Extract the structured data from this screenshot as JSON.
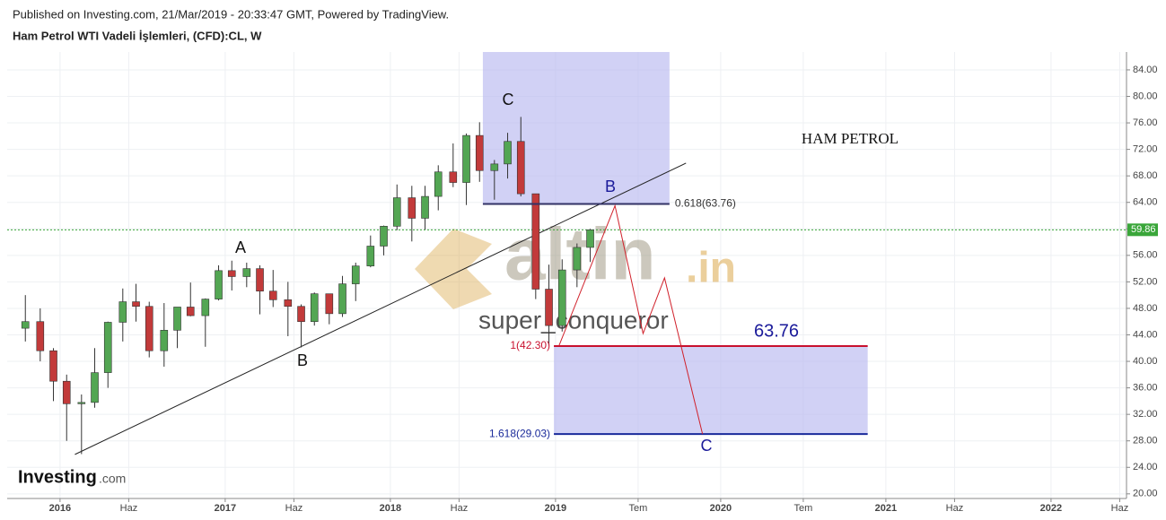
{
  "header": {
    "published": "Published on Investing.com, 21/Mar/2019 - 20:33:47 GMT, Powered by TradingView.",
    "instrument": "Ham Petrol WTI Vadeli İşlemleri, (CFD):CL, W"
  },
  "logo": {
    "name": "Investing",
    "suffix": ".com"
  },
  "watermark": {
    "name": "altin",
    "suffix": ".in",
    "author": "super_conqueror"
  },
  "chart_data": {
    "type": "candlestick",
    "x": [
      2015.79,
      2015.88,
      2015.96,
      2016.04,
      2016.13,
      2016.21,
      2016.29,
      2016.38,
      2016.46,
      2016.54,
      2016.63,
      2016.71,
      2016.79,
      2016.88,
      2016.96,
      2017.04,
      2017.13,
      2017.21,
      2017.29,
      2017.38,
      2017.46,
      2017.54,
      2017.63,
      2017.71,
      2017.79,
      2017.88,
      2017.96,
      2018.04,
      2018.13,
      2018.21,
      2018.29,
      2018.38,
      2018.46,
      2018.54,
      2018.63,
      2018.71,
      2018.79,
      2018.88,
      2018.96,
      2019.04,
      2019.13,
      2019.21
    ],
    "open": [
      45,
      46,
      41.6,
      37,
      33.6,
      33.8,
      38.3,
      45.9,
      49,
      48.3,
      41.6,
      44.7,
      48.2,
      46.9,
      49.4,
      53.7,
      52.8,
      54,
      50.6,
      49.3,
      48.3,
      46,
      50.2,
      47.2,
      51.7,
      54.4,
      57.4,
      60.4,
      64.7,
      61.6,
      64.9,
      68.6,
      67,
      74.1,
      68.8,
      69.8,
      73.2,
      65.3,
      50.9,
      45.4,
      53.8,
      57.2
    ],
    "high": [
      50,
      48,
      42,
      38,
      35,
      42,
      46,
      51,
      51.7,
      49,
      48.8,
      48,
      51.9,
      49.5,
      54.5,
      55.2,
      54.9,
      54.5,
      53.8,
      52,
      48.6,
      50.4,
      50.2,
      52.9,
      54.9,
      59,
      60.5,
      66.7,
      66.5,
      66.5,
      69.6,
      72.9,
      74.4,
      76.1,
      70.4,
      74.5,
      76.9,
      65.3,
      54.6,
      55.4,
      57.8,
      60
    ],
    "low": [
      43,
      40,
      34,
      28,
      26,
      33,
      36,
      43,
      46,
      40.6,
      39.2,
      42,
      46.8,
      42.2,
      49.2,
      50.7,
      51.2,
      47.1,
      48.2,
      43.8,
      42.1,
      45.4,
      45.6,
      46.7,
      49.1,
      54.2,
      56,
      59.8,
      58.1,
      59.9,
      62.8,
      66.3,
      63.6,
      67.1,
      64.4,
      67.6,
      64.9,
      49.4,
      42.4,
      44.5,
      51.2,
      55
    ],
    "close": [
      46,
      41.6,
      37,
      33.6,
      33.8,
      38.3,
      45.9,
      49,
      48.3,
      41.6,
      44.7,
      48.2,
      46.9,
      49.4,
      53.7,
      52.8,
      54,
      50.6,
      49.3,
      48.3,
      46,
      50.2,
      47.2,
      51.7,
      54.4,
      57.4,
      60.4,
      64.7,
      61.6,
      64.9,
      68.6,
      67,
      74.1,
      68.8,
      69.8,
      73.2,
      65.3,
      50.9,
      45.4,
      53.8,
      57.2,
      59.86
    ],
    "colors": {
      "up": "#53a653",
      "down": "#c23a3a"
    },
    "last_price": 59.86,
    "xlim": [
      2015.68,
      2022.457
    ],
    "ylim": [
      19.3,
      86.7
    ],
    "xticks": [
      2016,
      {
        "value": 2016.416,
        "label": "Haz"
      },
      2017,
      {
        "value": 2017.416,
        "label": "Haz"
      },
      2018,
      {
        "value": 2018.416,
        "label": "Haz"
      },
      2019,
      {
        "value": 2019.5,
        "label": "Tem"
      },
      2020,
      {
        "value": 2020.5,
        "label": "Tem"
      },
      2021,
      {
        "value": 2021.416,
        "label": "Haz"
      },
      2022,
      {
        "value": 2022.416,
        "label": "Haz"
      }
    ],
    "yticks": [
      {
        "value": 20,
        "label": "20.00"
      },
      {
        "value": 24,
        "label": "24.00"
      },
      {
        "value": 28,
        "label": "28.00"
      },
      {
        "value": 32,
        "label": "32.00"
      },
      {
        "value": 36,
        "label": "36.00"
      },
      {
        "value": 40,
        "label": "40.00"
      },
      {
        "value": 44,
        "label": "44.00"
      },
      {
        "value": 48,
        "label": "48.00"
      },
      {
        "value": 52,
        "label": "52.00"
      },
      {
        "value": 56,
        "label": "56.00"
      },
      {
        "value": 60,
        "label": "60.00"
      },
      {
        "value": 64,
        "label": "64.00"
      },
      {
        "value": 68,
        "label": "68.00"
      },
      {
        "value": 72,
        "label": "72.00"
      },
      {
        "value": 76,
        "label": "76.00"
      },
      {
        "value": 80,
        "label": "80.00"
      },
      {
        "value": 84,
        "label": "84.00"
      }
    ],
    "grid": true,
    "zones": [
      {
        "x": [
          2018.56,
          2019.69
        ],
        "y": [
          63.76,
          86.7
        ]
      },
      {
        "x": [
          2018.99,
          2020.89
        ],
        "y": [
          29.03,
          42.3
        ]
      }
    ],
    "fib_levels": [
      {
        "value": 63.76,
        "label": "0.618(63.76)"
      },
      {
        "value": 42.3,
        "label": "1(42.30)"
      },
      {
        "value": 29.03,
        "label": "1.618(29.03)"
      }
    ],
    "trendline": {
      "x": [
        2016.09,
        2019.79
      ],
      "y": [
        25.95,
        69.93
      ]
    },
    "projection": {
      "x": [
        2019.02,
        2019.36,
        2019.53,
        2019.66,
        2019.89
      ],
      "y": [
        42.3,
        63.5,
        44.2,
        52.6,
        29.03
      ]
    },
    "annotations": [
      "A",
      "B",
      "C",
      "HAM PETROL",
      "B",
      "C",
      "63.76"
    ]
  }
}
